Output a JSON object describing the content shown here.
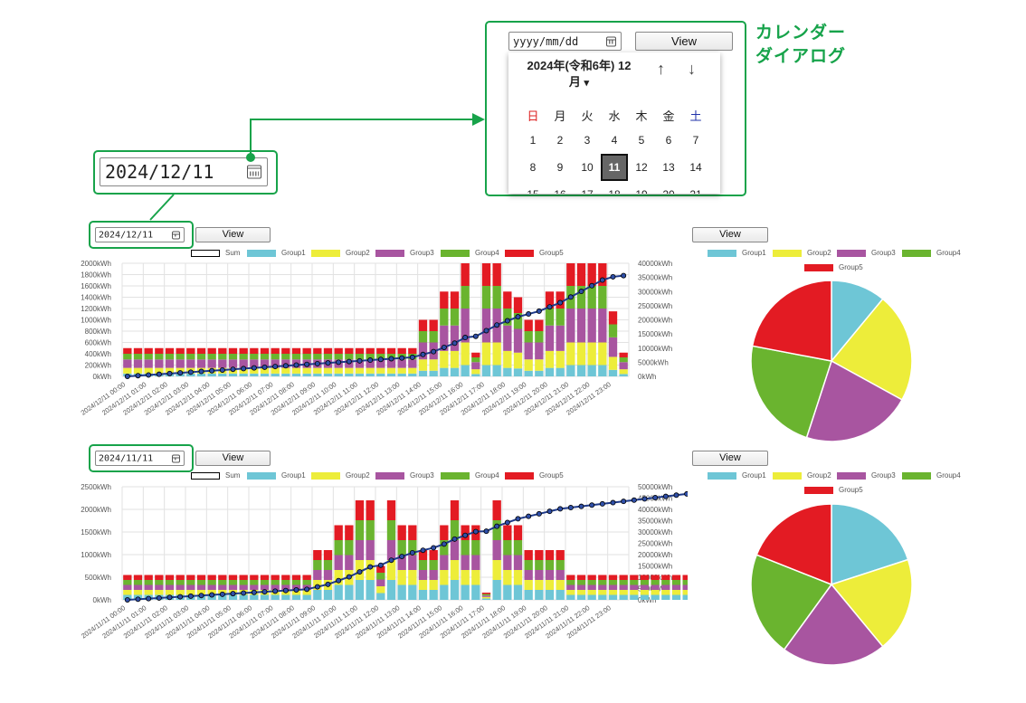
{
  "callout": {
    "date_input_value": "2024/12/11",
    "placeholder": "yyyy/mm/dd",
    "view_label": "View",
    "label_line1": "カレンダー",
    "label_line2": "ダイアログ"
  },
  "calendar": {
    "month_title_line1": "2024年(令和6年) 12",
    "month_title_line2": "月",
    "dropdown_glyph": "▾",
    "prev_glyph": "↑",
    "next_glyph": "↓",
    "weekdays": [
      "日",
      "月",
      "火",
      "水",
      "木",
      "金",
      "土"
    ],
    "weekday_colors": [
      "#d22",
      "#222",
      "#222",
      "#222",
      "#222",
      "#222",
      "#23a"
    ],
    "weeks": [
      [
        "1",
        "2",
        "3",
        "4",
        "5",
        "6",
        "7"
      ],
      [
        "8",
        "9",
        "10",
        "11",
        "12",
        "13",
        "14"
      ],
      [
        "15",
        "16",
        "17",
        "18",
        "19",
        "20",
        "21"
      ]
    ],
    "selected_day": "11"
  },
  "colors": {
    "sum": "#1e3a8a",
    "Group1": "#6ec6d6",
    "Group2": "#eded3a",
    "Group3": "#a855a0",
    "Group4": "#6ab42f",
    "Group5": "#e31b23",
    "accent": "#17a34a"
  },
  "panel1": {
    "date_value": "2024/12/11",
    "view_label": "View",
    "pie_view_label": "View"
  },
  "panel2": {
    "date_value": "2024/11/11",
    "view_label": "View",
    "pie_view_label": "View"
  },
  "chart_data": [
    {
      "type": "bar",
      "stacked": true,
      "legend": [
        "Sum",
        "Group1",
        "Group2",
        "Group3",
        "Group4",
        "Group5"
      ],
      "ylim": [
        0,
        2000
      ],
      "y_ticks": [
        "0kWh",
        "200kWh",
        "400kWh",
        "600kWh",
        "800kWh",
        "1000kWh",
        "1200kWh",
        "1400kWh",
        "1600kWh",
        "1800kWh",
        "2000kWh"
      ],
      "y2lim": [
        0,
        40000
      ],
      "y2_ticks": [
        "0kWh",
        "5000kWh",
        "10000kWh",
        "15000kWh",
        "20000kWh",
        "25000kWh",
        "30000kWh",
        "35000kWh",
        "40000kWh"
      ],
      "x_ticks": [
        "2024/12/11 00:00",
        "2024/12/11 01:00",
        "2024/12/11 02:00",
        "2024/12/11 03:00",
        "2024/12/11 04:00",
        "2024/12/11 05:00",
        "2024/12/11 06:00",
        "2024/12/11 07:00",
        "2024/12/11 08:00",
        "2024/12/11 09:00",
        "2024/12/11 10:00",
        "2024/12/11 11:00",
        "2024/12/11 12:00",
        "2024/12/11 13:00",
        "2024/12/11 14:00",
        "2024/12/11 15:00",
        "2024/12/11 16:00",
        "2024/12/11 17:00",
        "2024/12/11 18:00",
        "2024/12/11 19:00",
        "2024/12/11 20:00",
        "2024/12/11 21:00",
        "2024/12/11 22:00",
        "2024/12/11 23:00"
      ],
      "bar_totals": [
        500,
        500,
        500,
        500,
        500,
        500,
        500,
        500,
        500,
        500,
        500,
        500,
        500,
        500,
        500,
        500,
        500,
        500,
        500,
        500,
        500,
        500,
        500,
        500,
        500,
        500,
        500,
        500,
        1000,
        1000,
        1500,
        1500,
        2000,
        420,
        2000,
        2000,
        1500,
        1400,
        1000,
        1000,
        1500,
        1500,
        2000,
        2000,
        2000,
        2000,
        1150,
        420
      ],
      "group_fractions": [
        0.1,
        0.2,
        0.3,
        0.2,
        0.2
      ],
      "sum_series": [
        0,
        250,
        500,
        750,
        1000,
        1250,
        1500,
        1750,
        2000,
        2250,
        2500,
        2750,
        3000,
        3250,
        3500,
        3750,
        4000,
        4250,
        4500,
        4750,
        5000,
        5250,
        5500,
        5750,
        6000,
        6250,
        6500,
        6750,
        7750,
        8750,
        10250,
        11750,
        13750,
        14170,
        16170,
        18170,
        19670,
        21070,
        22070,
        23070,
        24570,
        26070,
        28070,
        30070,
        32070,
        34070,
        35220,
        35640
      ],
      "pie": {
        "labels": [
          "Group1",
          "Group2",
          "Group3",
          "Group4",
          "Group5"
        ],
        "values": [
          11,
          22,
          22,
          23,
          22
        ]
      }
    },
    {
      "type": "bar",
      "stacked": true,
      "legend": [
        "Sum",
        "Group1",
        "Group2",
        "Group3",
        "Group4",
        "Group5"
      ],
      "ylim": [
        0,
        2500
      ],
      "y_ticks": [
        "0kWh",
        "500kWh",
        "1000kWh",
        "1500kWh",
        "2000kWh",
        "2500kWh"
      ],
      "y2lim": [
        0,
        50000
      ],
      "y2_ticks": [
        "0kWh",
        "5000kWh",
        "10000kWh",
        "15000kWh",
        "20000kWh",
        "25000kWh",
        "30000kWh",
        "35000kWh",
        "40000kWh",
        "45000kWh",
        "50000kWh"
      ],
      "x_ticks": [
        "2024/11/11 00:00",
        "2024/11/11 01:00",
        "2024/11/11 02:00",
        "2024/11/11 03:00",
        "2024/11/11 04:00",
        "2024/11/11 05:00",
        "2024/11/11 06:00",
        "2024/11/11 07:00",
        "2024/11/11 08:00",
        "2024/11/11 09:00",
        "2024/11/11 10:00",
        "2024/11/11 11:00",
        "2024/11/11 12:00",
        "2024/11/11 13:00",
        "2024/11/11 14:00",
        "2024/11/11 15:00",
        "2024/11/11 16:00",
        "2024/11/11 17:00",
        "2024/11/11 18:00",
        "2024/11/11 19:00",
        "2024/11/11 20:00",
        "2024/11/11 21:00",
        "2024/11/11 22:00",
        "2024/11/11 23:00"
      ],
      "bar_totals": [
        550,
        550,
        550,
        550,
        550,
        550,
        550,
        550,
        550,
        550,
        550,
        550,
        550,
        550,
        550,
        550,
        550,
        550,
        1100,
        1100,
        1650,
        1650,
        2200,
        2200,
        750,
        2200,
        1650,
        1650,
        1100,
        1100,
        1650,
        2200,
        1650,
        1650,
        160,
        2200,
        1650,
        1650,
        1100,
        1100,
        1100,
        1100,
        550,
        550,
        550,
        550,
        550,
        550,
        550,
        550,
        550,
        550,
        550,
        550,
        550,
        550,
        550,
        550,
        550,
        550
      ],
      "group_fractions": [
        0.2,
        0.2,
        0.2,
        0.2,
        0.2
      ],
      "sum_series": [
        0,
        275,
        550,
        825,
        1100,
        1375,
        1650,
        1925,
        2200,
        2475,
        2750,
        3025,
        3300,
        3575,
        3850,
        4125,
        4400,
        4675,
        5775,
        6875,
        8525,
        10175,
        12375,
        14575,
        15325,
        17525,
        19175,
        20825,
        21925,
        23025,
        24675,
        26875,
        28525,
        30175,
        30335,
        32535,
        34185,
        35835,
        36935,
        38035,
        39135,
        40235,
        40785,
        41335,
        41885,
        42435,
        42985,
        43535,
        44085,
        44635,
        45185,
        45735,
        46285,
        46835,
        47385,
        47935,
        48485,
        49035,
        49585,
        50000
      ],
      "pie": {
        "labels": [
          "Group1",
          "Group2",
          "Group3",
          "Group4",
          "Group5"
        ],
        "values": [
          20,
          19,
          21,
          21,
          19
        ]
      }
    }
  ]
}
